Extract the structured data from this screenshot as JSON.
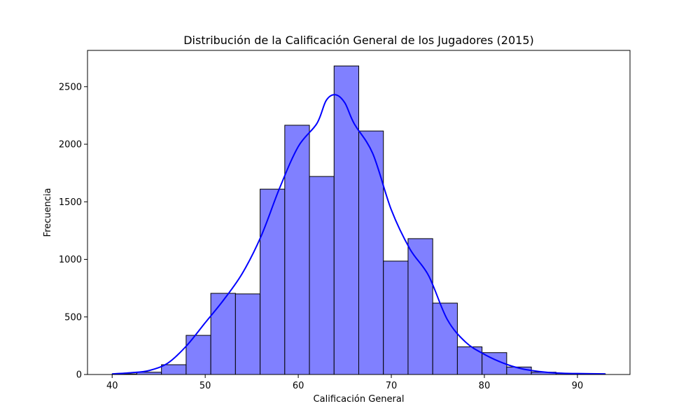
{
  "chart_data": {
    "type": "bar",
    "title": "Distribución de la Calificación General de los Jugadores (2015)",
    "xlabel": "Calificación General",
    "ylabel": "Frecuencia",
    "xlim": [
      37.35,
      95.65
    ],
    "ylim": [
      0,
      2815
    ],
    "x_ticks": [
      40,
      50,
      60,
      70,
      80,
      90
    ],
    "y_ticks": [
      0,
      500,
      1000,
      1500,
      2000,
      2500
    ],
    "bin_width": 2.65,
    "bin_start": 40,
    "bins": [
      {
        "x0": 40.0,
        "x1": 42.65,
        "count": 5
      },
      {
        "x0": 42.65,
        "x1": 45.3,
        "count": 20
      },
      {
        "x0": 45.3,
        "x1": 47.95,
        "count": 85
      },
      {
        "x0": 47.95,
        "x1": 50.6,
        "count": 340
      },
      {
        "x0": 50.6,
        "x1": 53.25,
        "count": 705
      },
      {
        "x0": 53.25,
        "x1": 55.9,
        "count": 700
      },
      {
        "x0": 55.9,
        "x1": 58.55,
        "count": 1610
      },
      {
        "x0": 58.55,
        "x1": 61.2,
        "count": 2165
      },
      {
        "x0": 61.2,
        "x1": 63.85,
        "count": 1720
      },
      {
        "x0": 63.85,
        "x1": 66.5,
        "count": 2680
      },
      {
        "x0": 66.5,
        "x1": 69.15,
        "count": 2115
      },
      {
        "x0": 69.15,
        "x1": 71.8,
        "count": 985
      },
      {
        "x0": 71.8,
        "x1": 74.45,
        "count": 1180
      },
      {
        "x0": 74.45,
        "x1": 77.1,
        "count": 620
      },
      {
        "x0": 77.1,
        "x1": 79.75,
        "count": 240
      },
      {
        "x0": 79.75,
        "x1": 82.4,
        "count": 190
      },
      {
        "x0": 82.4,
        "x1": 85.05,
        "count": 65
      },
      {
        "x0": 85.05,
        "x1": 87.7,
        "count": 20
      },
      {
        "x0": 87.7,
        "x1": 90.35,
        "count": 8
      },
      {
        "x0": 90.35,
        "x1": 93.0,
        "count": 5
      }
    ],
    "kde": {
      "x": [
        40,
        42,
        44,
        46,
        48,
        50,
        52,
        54,
        56,
        58,
        60,
        62,
        63,
        64,
        65,
        66,
        68,
        70,
        72,
        74,
        76,
        78,
        80,
        82,
        84,
        86,
        88,
        90,
        93
      ],
      "y": [
        5,
        15,
        35,
        100,
        250,
        450,
        650,
        880,
        1200,
        1620,
        1980,
        2180,
        2380,
        2430,
        2360,
        2180,
        1920,
        1430,
        1090,
        860,
        480,
        280,
        175,
        100,
        50,
        25,
        12,
        8,
        5
      ]
    },
    "colors": {
      "bar_fill": "#8080ff",
      "bar_edge": "#000000",
      "kde_line": "#0000ff"
    },
    "grid": false
  }
}
